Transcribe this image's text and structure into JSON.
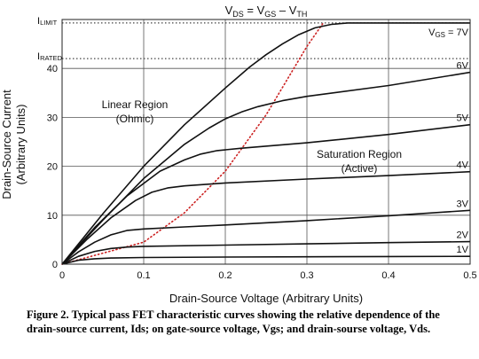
{
  "chart_data": {
    "type": "line",
    "title_parts": {
      "v": "V",
      "ds": "DS",
      "eq": " = V",
      "gs": "GS",
      "minus": " – V",
      "th": "TH"
    },
    "xlabel": "Drain-Source Voltage (Arbitrary Units)",
    "ylabel_line1": "Drain-Source Current",
    "ylabel_line2": "(Arbitrary Units)",
    "xlim": [
      0,
      0.5
    ],
    "ylim": [
      0,
      50
    ],
    "x_ticks": [
      0,
      0.1,
      0.2,
      0.3,
      0.4,
      0.5
    ],
    "x_tick_labels": [
      "0",
      "0.1",
      "0.2",
      "0.3",
      "0.4",
      "0.5"
    ],
    "y_ticks": [
      0,
      10,
      20,
      30,
      40
    ],
    "y_tick_labels": [
      "0",
      "10",
      "20",
      "30",
      "40"
    ],
    "grid": true,
    "reference_lines": [
      {
        "main": "I",
        "sub": "LIMIT",
        "y": 49.3,
        "style": "dotted"
      },
      {
        "main": "I",
        "sub": "RATED",
        "y": 42,
        "style": "dotted"
      }
    ],
    "series": [
      {
        "name": "1V",
        "x": [
          0,
          0.02,
          0.04,
          0.06,
          0.1,
          0.2,
          0.3,
          0.4,
          0.5
        ],
        "y": [
          0,
          0.8,
          1.1,
          1.25,
          1.35,
          1.45,
          1.5,
          1.55,
          1.6
        ]
      },
      {
        "name": "2V",
        "x": [
          0,
          0.02,
          0.04,
          0.06,
          0.08,
          0.1,
          0.2,
          0.3,
          0.4,
          0.5
        ],
        "y": [
          0,
          1.6,
          2.6,
          3.2,
          3.5,
          3.65,
          3.9,
          4.15,
          4.4,
          4.6
        ]
      },
      {
        "name": "3V",
        "x": [
          0,
          0.02,
          0.04,
          0.06,
          0.08,
          0.1,
          0.15,
          0.2,
          0.3,
          0.4,
          0.5
        ],
        "y": [
          0,
          2.5,
          4.5,
          6.0,
          6.9,
          7.2,
          7.6,
          8.0,
          8.9,
          9.9,
          11.0
        ]
      },
      {
        "name": "4V",
        "x": [
          0,
          0.03,
          0.06,
          0.09,
          0.11,
          0.13,
          0.15,
          0.2,
          0.3,
          0.4,
          0.5
        ],
        "y": [
          0,
          5.0,
          9.5,
          13.0,
          14.7,
          15.6,
          16.0,
          16.6,
          17.4,
          18.1,
          18.9
        ]
      },
      {
        "name": "5V",
        "x": [
          0,
          0.04,
          0.08,
          0.12,
          0.15,
          0.17,
          0.19,
          0.22,
          0.3,
          0.4,
          0.5
        ],
        "y": [
          0,
          7.5,
          14.0,
          19.0,
          21.3,
          22.5,
          23.2,
          23.7,
          24.8,
          26.5,
          28.5
        ]
      },
      {
        "name": "6V",
        "x": [
          0,
          0.05,
          0.1,
          0.15,
          0.18,
          0.2,
          0.22,
          0.24,
          0.27,
          0.3,
          0.4,
          0.5
        ],
        "y": [
          0,
          9.0,
          17.5,
          24.5,
          27.8,
          29.7,
          31.1,
          32.2,
          33.4,
          34.3,
          36.5,
          39.2
        ]
      },
      {
        "name": "V",
        "name_sub": "GS",
        "name_suffix": " = 7V",
        "x": [
          0,
          0.05,
          0.1,
          0.15,
          0.2,
          0.23,
          0.25,
          0.27,
          0.29,
          0.31,
          0.33,
          0.35,
          0.4,
          0.5
        ],
        "y": [
          0,
          10.3,
          20.0,
          28.5,
          36.0,
          40.3,
          42.8,
          45.0,
          46.9,
          48.3,
          49.0,
          49.3,
          49.3,
          49.3
        ]
      }
    ],
    "boundary_curve": {
      "x": [
        0,
        0.1,
        0.15,
        0.2,
        0.25,
        0.3,
        0.32
      ],
      "y": [
        0,
        4.5,
        10.5,
        19.0,
        30.5,
        44.5,
        49.3
      ],
      "style": "dotted",
      "color": "#cc2222"
    },
    "annotations": {
      "linear_line1": "Linear Region",
      "linear_line2": "(Ohmic)",
      "saturation_line1": "Saturation Region",
      "saturation_line2": "(Active)"
    }
  },
  "caption": "Figure 2. Typical pass FET characteristic curves showing the relative dependence of the drain-source current, Ids; on gate-source voltage, Vgs; and drain-sourse voltage, Vds."
}
